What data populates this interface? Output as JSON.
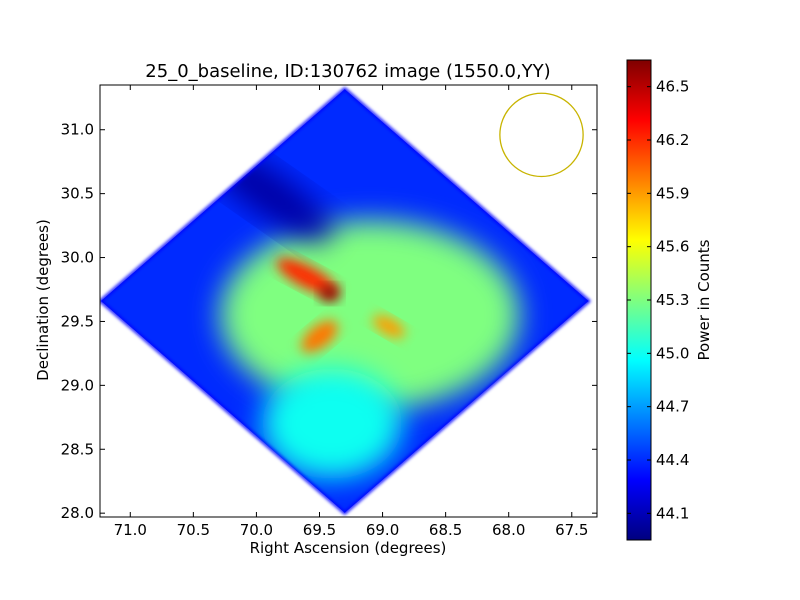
{
  "chart_data": {
    "type": "heatmap",
    "title": "25_0_baseline, ID:130762 image (1550.0,YY)",
    "xlabel": "Right Ascension (degrees)",
    "ylabel": "Declination (degrees)",
    "colorbar_label": "Power in Counts",
    "x_range": [
      71.24,
      67.3
    ],
    "y_range": [
      27.97,
      31.35
    ],
    "x_ticks": [
      "71.0",
      "70.5",
      "70.0",
      "69.5",
      "69.0",
      "68.5",
      "68.0",
      "67.5"
    ],
    "x_tick_values": [
      71.0,
      70.5,
      70.0,
      69.5,
      69.0,
      68.5,
      68.0,
      67.5
    ],
    "y_ticks": [
      "28.0",
      "28.5",
      "29.0",
      "29.5",
      "30.0",
      "30.5",
      "31.0"
    ],
    "y_tick_values": [
      28.0,
      28.5,
      29.0,
      29.5,
      30.0,
      30.5,
      31.0
    ],
    "colorbar_range": [
      43.95,
      46.65
    ],
    "colorbar_ticks": [
      "44.1",
      "44.4",
      "44.7",
      "45.0",
      "45.3",
      "45.6",
      "45.9",
      "46.2",
      "46.5"
    ],
    "colorbar_tick_values": [
      44.1,
      44.4,
      44.7,
      45.0,
      45.3,
      45.6,
      45.9,
      46.2,
      46.5
    ],
    "colormap": "jet",
    "footprint_center": {
      "ra": 69.3,
      "dec": 29.66
    },
    "beam_marker": {
      "ra": 67.74,
      "dec": 30.96,
      "radius_deg": 0.33,
      "color": "#c8b400"
    },
    "regions": [
      {
        "name": "outer-field",
        "ra": 69.3,
        "dec": 29.66,
        "value": 44.4
      },
      {
        "name": "central-plateau",
        "ra": 69.1,
        "dec": 29.55,
        "value": 45.3
      },
      {
        "name": "north-dark-lane",
        "ra": 69.9,
        "dec": 30.5,
        "value": 44.05
      },
      {
        "name": "bright-arc-north",
        "ra": 69.6,
        "dec": 29.85,
        "value": 46.2
      },
      {
        "name": "bright-peak",
        "ra": 69.42,
        "dec": 29.72,
        "value": 46.6
      },
      {
        "name": "bright-arc-south",
        "ra": 69.5,
        "dec": 29.38,
        "value": 46.0
      },
      {
        "name": "east-blob",
        "ra": 68.95,
        "dec": 29.46,
        "value": 45.9
      },
      {
        "name": "south-lobe",
        "ra": 69.4,
        "dec": 28.7,
        "value": 45.0
      }
    ]
  }
}
